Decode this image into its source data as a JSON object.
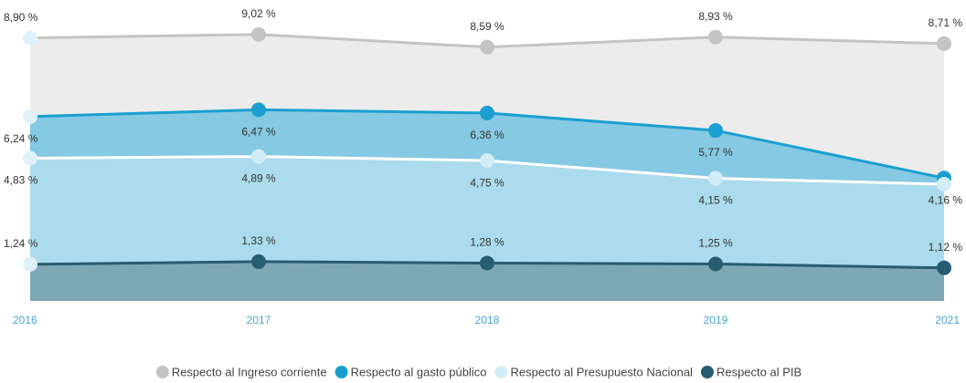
{
  "chart_data": {
    "type": "area",
    "categories": [
      "2016",
      "2017",
      "2018",
      "2019",
      "2021"
    ],
    "ylim": [
      0,
      10
    ],
    "series": [
      {
        "name": "Respecto al Ingreso corriente",
        "color": "#c4c4c4",
        "fill": "#ececec",
        "values": [
          8.9,
          9.02,
          8.59,
          8.93,
          8.71
        ],
        "value_labels": [
          "8,90 %",
          "9,02 %",
          "8,59 %",
          "8,93 %",
          "8,71 %"
        ]
      },
      {
        "name": "Respecto al gasto público",
        "color": "#1a9fd0",
        "fill": "#86c9e2",
        "values": [
          6.24,
          6.47,
          6.36,
          5.77,
          4.16
        ],
        "value_labels": [
          "6,24 %",
          "6,47 %",
          "6,36 %",
          "5,77 %",
          "4,16 %"
        ]
      },
      {
        "name": "Respecto al Presupuesto Nacional",
        "color": "#d2edf6",
        "fill": "#abdbec",
        "values": [
          4.83,
          4.89,
          4.75,
          4.15,
          3.95
        ],
        "value_labels": [
          "4,83 %",
          "4,89 %",
          "4,75 %",
          "4,15 %",
          null
        ]
      },
      {
        "name": "Respecto al PIB",
        "color": "#285c70",
        "fill": "#7fa8b7",
        "values": [
          1.24,
          1.33,
          1.28,
          1.25,
          1.12
        ],
        "value_labels": [
          "1,24 %",
          "1,33 %",
          "1,28 %",
          "1,25 %",
          "1,12 %"
        ]
      }
    ]
  }
}
